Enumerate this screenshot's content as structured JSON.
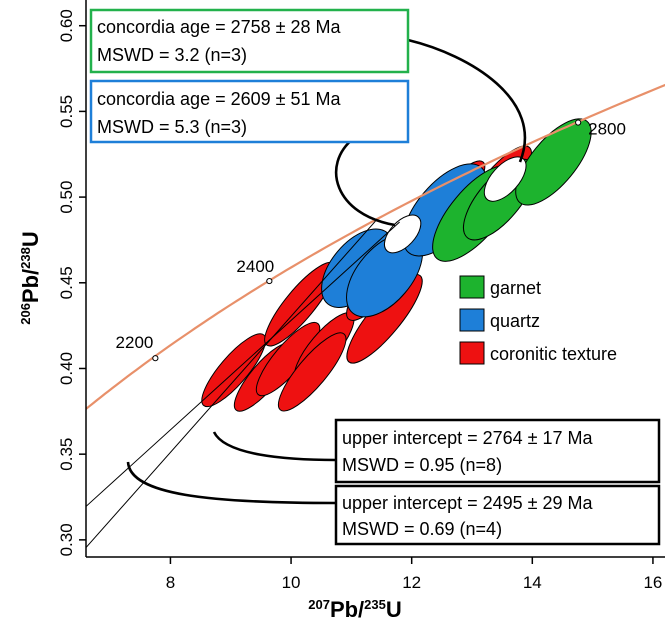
{
  "chart_data": {
    "type": "scatter",
    "xlabel": {
      "sup": "207",
      "main": "Pb/",
      "sup2": "235",
      "end": "U"
    },
    "ylabel": {
      "sup": "206",
      "main": "Pb/",
      "sup2": "238",
      "end": "U"
    },
    "xlim": [
      6.6,
      16.2
    ],
    "ylim": [
      0.29,
      0.615
    ],
    "xticks": [
      "8",
      "10",
      "12",
      "14",
      "16"
    ],
    "yticks": [
      "0.30",
      "0.35",
      "0.40",
      "0.45",
      "0.50",
      "0.55",
      "0.60"
    ],
    "concordia_ticks": [
      {
        "label": "2200",
        "x": 7.75,
        "y": 0.406
      },
      {
        "label": "2400",
        "x": 9.64,
        "y": 0.451
      },
      {
        "label": "2800",
        "x": 14.76,
        "y": 0.5435
      }
    ],
    "legend": [
      {
        "name": "garnet",
        "color": "#1db32e"
      },
      {
        "name": "quartz",
        "color": "#1e7fd8"
      },
      {
        "name": "coronitic texture",
        "color": "#ee1111"
      }
    ],
    "concordia_color": "#e8906a",
    "annotations": [
      {
        "line1": "concordia age = 2758 ± 28 Ma",
        "line2": "MSWD = 3.2 (n=3)",
        "border": "#22b14c"
      },
      {
        "line1": "concordia age = 2609 ± 51 Ma",
        "line2": "MSWD = 5.3 (n=3)",
        "border": "#1e7fd8"
      },
      {
        "line1": "upper intercept = 2764 ± 17 Ma",
        "line2": "MSWD = 0.95 (n=8)",
        "border": "#000000"
      },
      {
        "line1": "upper intercept = 2495 ± 29 Ma",
        "line2": "MSWD = 0.69 (n=4)",
        "border": "#000000"
      }
    ],
    "discordia_lines": [
      {
        "from": [
          6.6,
          0.3195
        ],
        "to": [
          11.8,
          0.4855
        ]
      },
      {
        "from": [
          6.6,
          0.2955
        ],
        "to": [
          11.4,
          0.486
        ]
      }
    ],
    "ellipses": [
      {
        "group": "red",
        "cx": 9.05,
        "cy": 0.399,
        "rx": 1.45,
        "ry": 0.0058,
        "ang": 32.5
      },
      {
        "group": "red",
        "cx": 9.55,
        "cy": 0.395,
        "rx": 1.35,
        "ry": 0.0055,
        "ang": 33.0
      },
      {
        "group": "red",
        "cx": 9.95,
        "cy": 0.4055,
        "rx": 1.45,
        "ry": 0.0058,
        "ang": 33.0
      },
      {
        "group": "red",
        "cx": 10.15,
        "cy": 0.4375,
        "rx": 1.65,
        "ry": 0.0061,
        "ang": 33.5
      },
      {
        "group": "red",
        "cx": 10.55,
        "cy": 0.4125,
        "rx": 1.35,
        "ry": 0.0058,
        "ang": 33.0
      },
      {
        "group": "red",
        "cx": 10.35,
        "cy": 0.398,
        "rx": 1.55,
        "ry": 0.006,
        "ang": 33.0
      },
      {
        "group": "red",
        "cx": 11.45,
        "cy": 0.4495,
        "rx": 1.45,
        "ry": 0.0061,
        "ang": 33.0
      },
      {
        "group": "red",
        "cx": 11.55,
        "cy": 0.429,
        "rx": 1.75,
        "ry": 0.0066,
        "ang": 33.5
      },
      {
        "group": "red",
        "cx": 12.65,
        "cy": 0.4985,
        "rx": 1.55,
        "ry": 0.0058,
        "ang": 32.5
      },
      {
        "group": "red",
        "cx": 13.15,
        "cy": 0.4925,
        "rx": 1.55,
        "ry": 0.006,
        "ang": 33.0
      },
      {
        "group": "red",
        "cx": 13.45,
        "cy": 0.5085,
        "rx": 1.45,
        "ry": 0.0063,
        "ang": 32.5
      },
      {
        "group": "blue",
        "cx": 11.1,
        "cy": 0.4585,
        "rx": 1.45,
        "ry": 0.0108,
        "ang": 33.0
      },
      {
        "group": "blue",
        "cx": 11.55,
        "cy": 0.4545,
        "rx": 1.55,
        "ry": 0.0113,
        "ang": 33.0
      },
      {
        "group": "blue",
        "cx": 12.55,
        "cy": 0.4925,
        "rx": 1.75,
        "ry": 0.0113,
        "ang": 32.5
      },
      {
        "group": "green",
        "cx": 13.05,
        "cy": 0.4905,
        "rx": 1.85,
        "ry": 0.0102,
        "ang": 33.0
      },
      {
        "group": "green",
        "cx": 13.45,
        "cy": 0.4985,
        "rx": 1.55,
        "ry": 0.0087,
        "ang": 33.0
      },
      {
        "group": "green",
        "cx": 14.35,
        "cy": 0.5205,
        "rx": 1.65,
        "ry": 0.0093,
        "ang": 33.5
      },
      {
        "group": "white",
        "cx": 11.85,
        "cy": 0.4785,
        "rx": 0.72,
        "ry": 0.0052,
        "ang": 30.0
      },
      {
        "group": "white",
        "cx": 13.55,
        "cy": 0.5105,
        "rx": 0.85,
        "ry": 0.0057,
        "ang": 31.0
      }
    ]
  }
}
